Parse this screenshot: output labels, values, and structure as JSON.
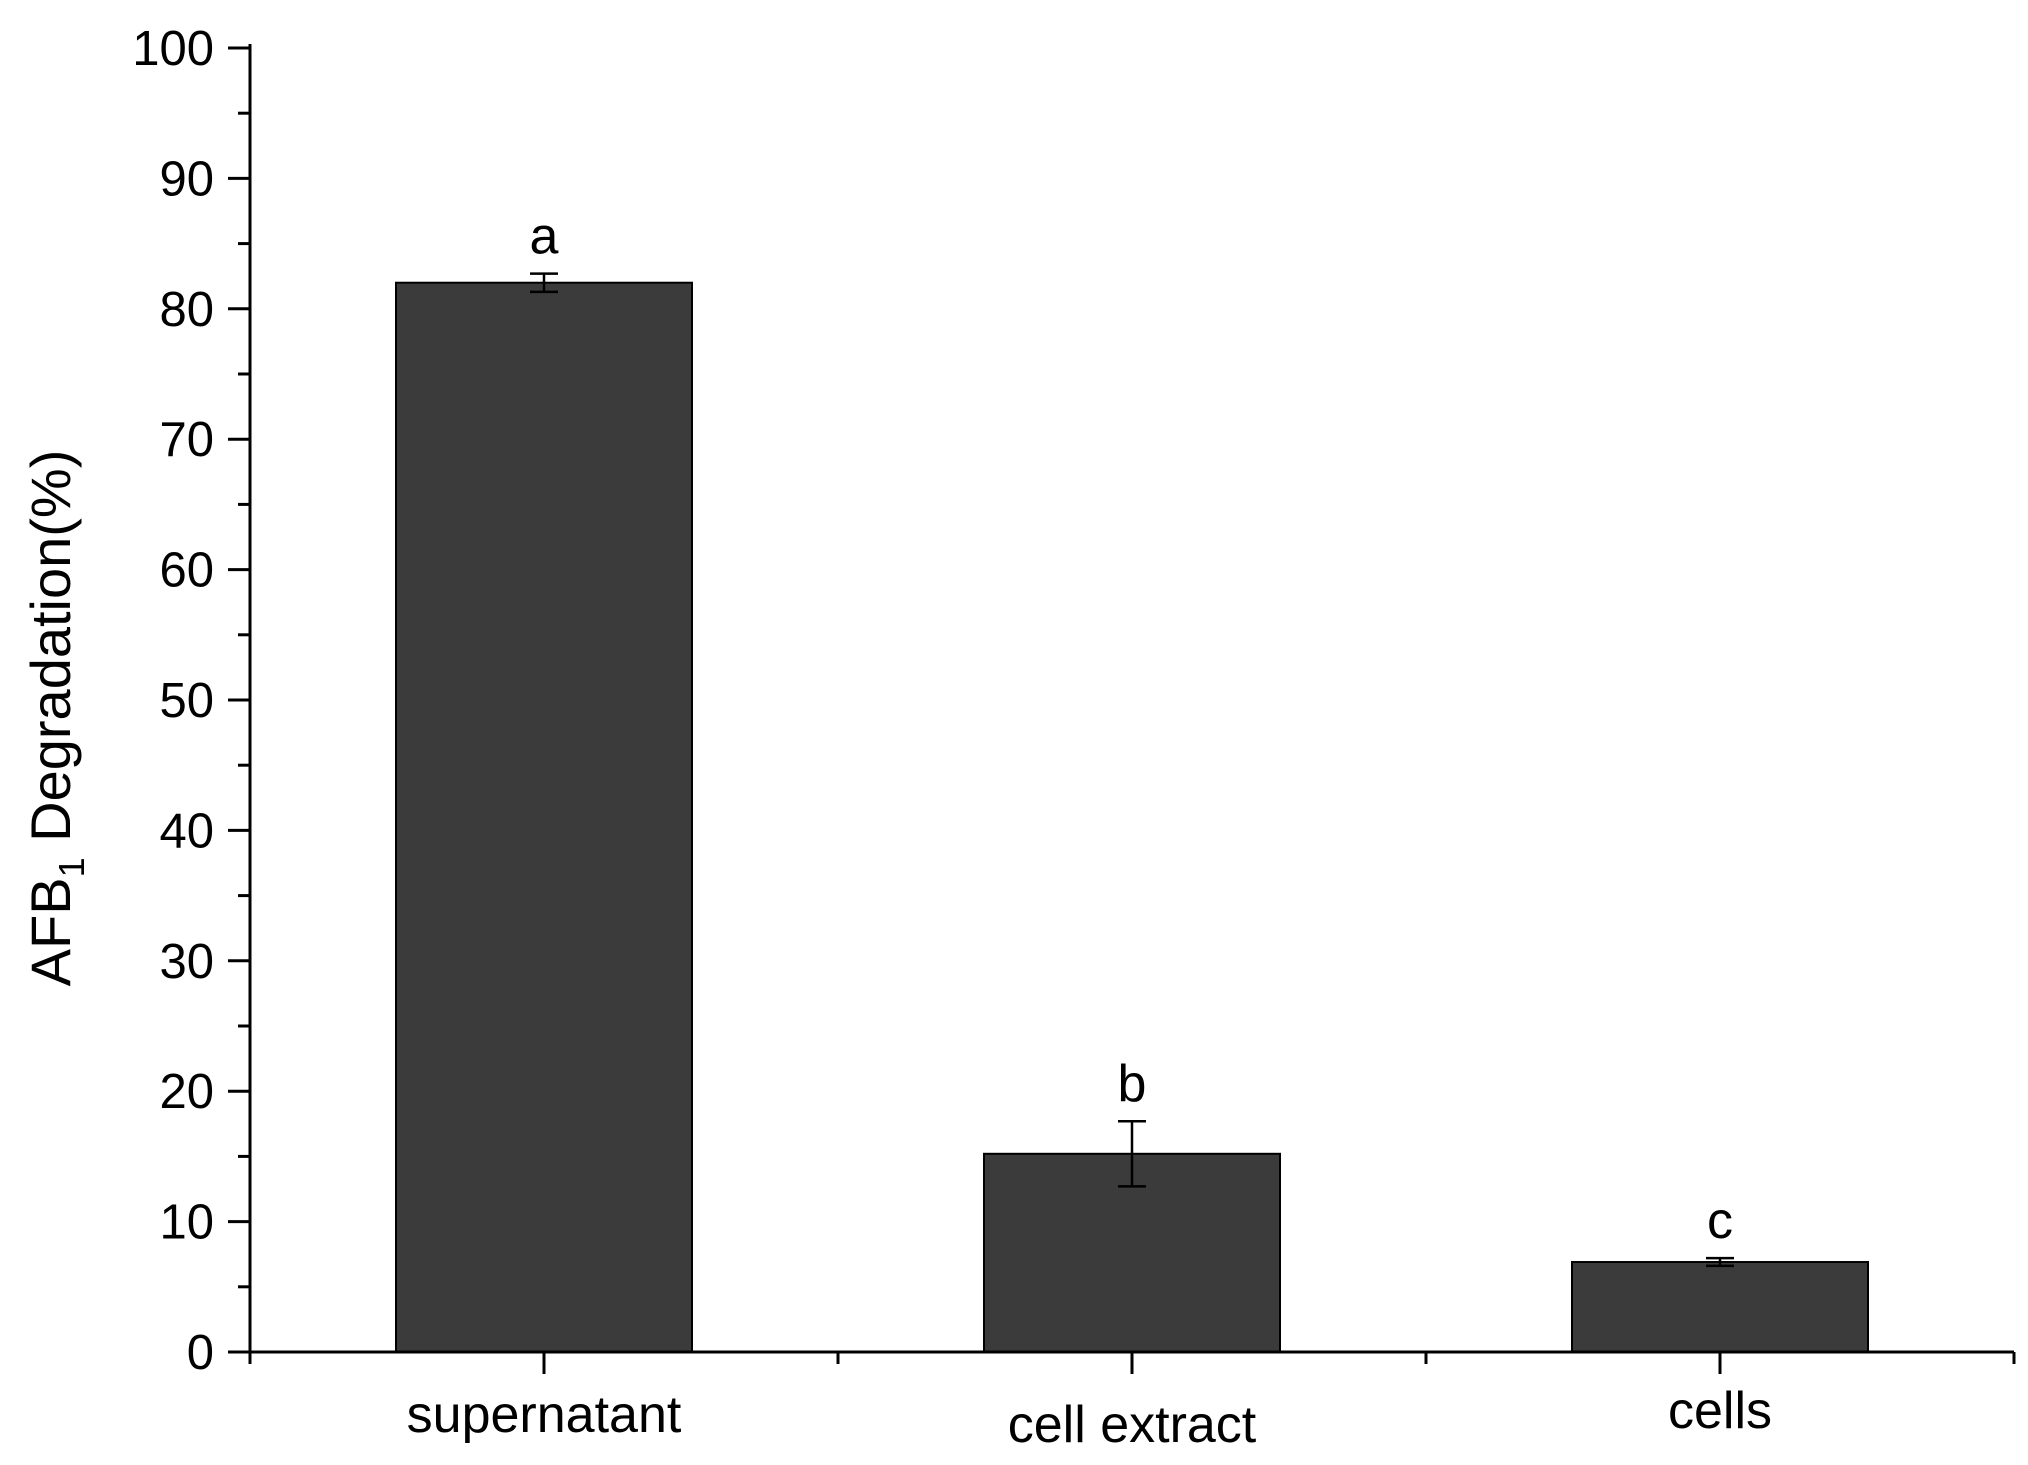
{
  "chart_data": {
    "type": "bar",
    "categories": [
      "supernatant",
      "cell extract",
      "cells"
    ],
    "values": [
      82.0,
      15.2,
      6.9
    ],
    "errors": [
      0.7,
      2.5,
      0.3
    ],
    "significance_letters": [
      "a",
      "b",
      "c"
    ],
    "title": "",
    "xlabel": "",
    "ylabel": {
      "main": "AFB",
      "subscript": "1",
      "rest": " Degradation(%)"
    },
    "ylim": [
      0,
      100
    ],
    "y_major_ticks": [
      0,
      10,
      20,
      30,
      40,
      50,
      60,
      70,
      80,
      90,
      100
    ],
    "y_minor_step": 5,
    "bar_color": "#3b3b3b",
    "axis_color": "#000000",
    "grid": false,
    "legend": "none"
  }
}
